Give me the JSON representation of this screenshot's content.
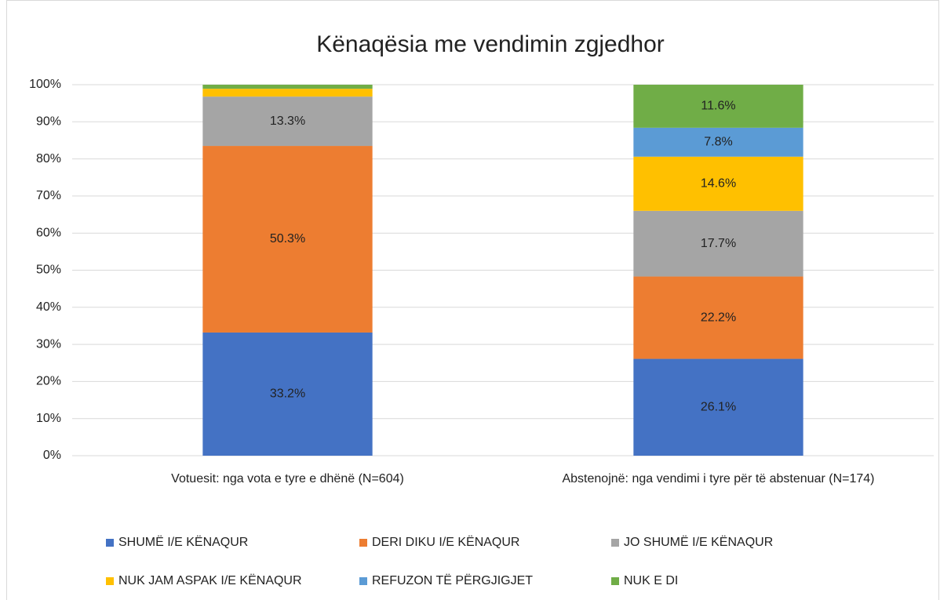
{
  "chart_data": {
    "type": "stacked_bar",
    "title": "Kënaqësia me vendimin zgjedhor",
    "categories": [
      "Votuesit: nga vota e tyre e dhënë (N=604)",
      "Abstenojnë: nga vendimi i tyre për të abstenuar (N=174)"
    ],
    "series": [
      {
        "name": "SHUMË I/E KËNAQUR",
        "color": "#4472c4",
        "values": [
          33.2,
          26.1
        ],
        "value_labels": [
          "33.2%",
          "26.1%"
        ]
      },
      {
        "name": "DERI DIKU I/E KËNAQUR",
        "color": "#ed7d31",
        "values": [
          50.3,
          22.2
        ],
        "value_labels": [
          "50.3%",
          "22.2%"
        ]
      },
      {
        "name": "JO SHUMË I/E KËNAQUR",
        "color": "#a5a5a5",
        "values": [
          13.3,
          17.7
        ],
        "value_labels": [
          "13.3%",
          "17.7%"
        ]
      },
      {
        "name": "NUK JAM ASPAK I/E KËNAQUR",
        "color": "#ffc000",
        "values": [
          2.1,
          14.6
        ],
        "value_labels": [
          null,
          "14.6%"
        ]
      },
      {
        "name": "REFUZON TË PËRGJIGJET",
        "color": "#5b9bd5",
        "values": [
          0,
          7.8
        ],
        "value_labels": [
          null,
          "7.8%"
        ]
      },
      {
        "name": "NUK E DI",
        "color": "#70ad47",
        "values": [
          1.1,
          11.6
        ],
        "value_labels": [
          null,
          "11.6%"
        ]
      }
    ],
    "ylim": [
      0,
      100
    ],
    "yticks": [
      {
        "value": 0,
        "label": "0%"
      },
      {
        "value": 10,
        "label": "10%"
      },
      {
        "value": 20,
        "label": "20%"
      },
      {
        "value": 30,
        "label": "30%"
      },
      {
        "value": 40,
        "label": "40%"
      },
      {
        "value": 50,
        "label": "50%"
      },
      {
        "value": 60,
        "label": "60%"
      },
      {
        "value": 70,
        "label": "70%"
      },
      {
        "value": 80,
        "label": "80%"
      },
      {
        "value": 90,
        "label": "90%"
      },
      {
        "value": 100,
        "label": "100%"
      }
    ],
    "grid": true
  }
}
